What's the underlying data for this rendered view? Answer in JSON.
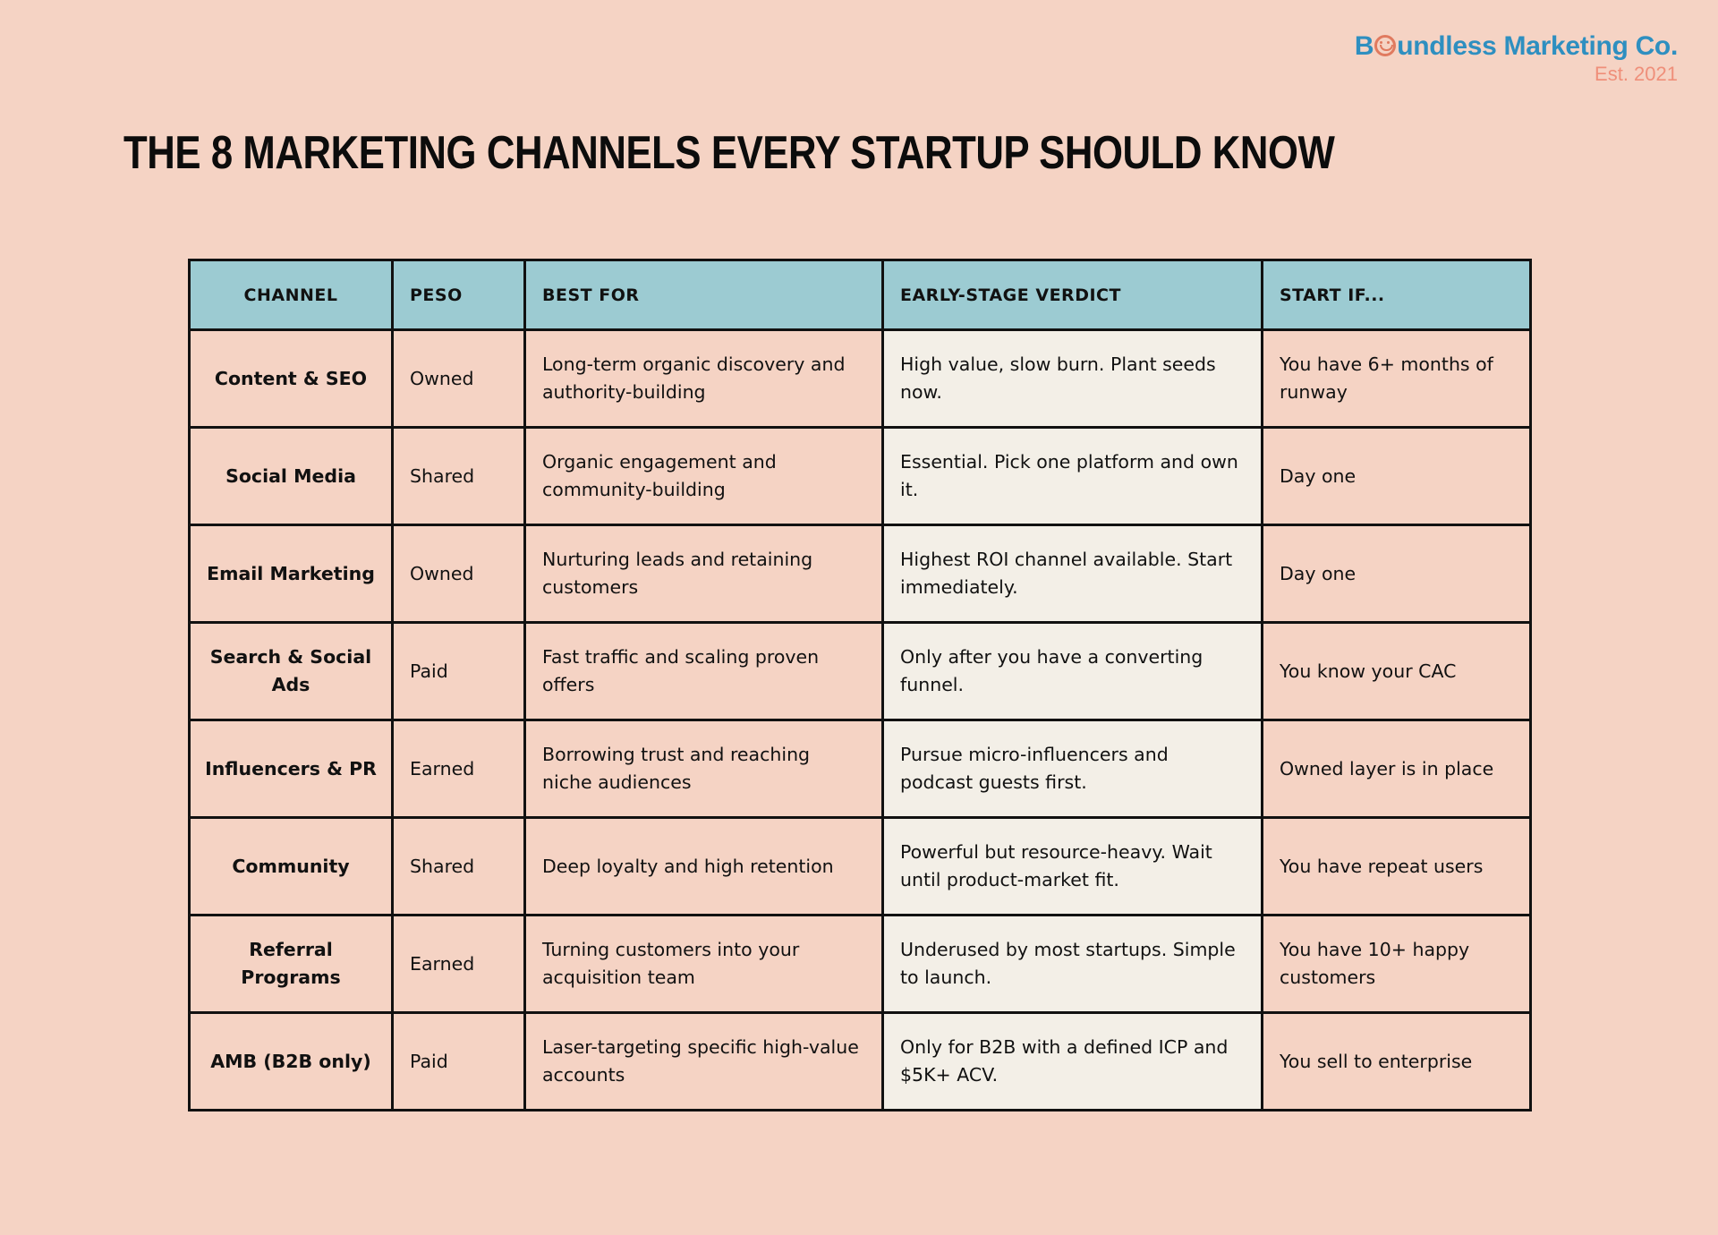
{
  "brand": {
    "name_before": "B",
    "name_after": "undless Marketing Co.",
    "established": "Est. 2021"
  },
  "title": "THE 8 MARKETING CHANNELS EVERY STARTUP SHOULD KNOW",
  "table": {
    "headers": [
      "CHANNEL",
      "PESO",
      "BEST FOR",
      "EARLY-STAGE VERDICT",
      "START IF..."
    ],
    "rows": [
      {
        "channel": "Content & SEO",
        "peso": "Owned",
        "best_for": "Long-term organic discovery and authority-building",
        "verdict": "High value, slow burn. Plant seeds now.",
        "start_if": "You have 6+ months of runway"
      },
      {
        "channel": "Social Media",
        "peso": "Shared",
        "best_for": "Organic engagement and community-building",
        "verdict": "Essential. Pick one platform and own it.",
        "start_if": "Day one"
      },
      {
        "channel": "Email Marketing",
        "peso": "Owned",
        "best_for": "Nurturing leads and retaining customers",
        "verdict": "Highest ROI channel available. Start immediately.",
        "start_if": "Day one"
      },
      {
        "channel": "Search & Social Ads",
        "peso": "Paid",
        "best_for": "Fast traffic and scaling proven offers",
        "verdict": "Only after you have a converting funnel.",
        "start_if": "You know your CAC"
      },
      {
        "channel": "Influencers & PR",
        "peso": "Earned",
        "best_for": "Borrowing trust and reaching niche audiences",
        "verdict": "Pursue micro-influencers and podcast guests first.",
        "start_if": "Owned layer is in place"
      },
      {
        "channel": "Community",
        "peso": "Shared",
        "best_for": "Deep loyalty and high retention",
        "verdict": "Powerful but resource-heavy. Wait until product-market fit.",
        "start_if": "You have repeat users"
      },
      {
        "channel": "Referral Programs",
        "peso": "Earned",
        "best_for": "Turning customers into your acquisition team",
        "verdict": "Underused by most startups. Simple to launch.",
        "start_if": "You have 10+ happy customers"
      },
      {
        "channel": "AMB (B2B only)",
        "peso": "Paid",
        "best_for": "Laser-targeting specific high-value accounts",
        "verdict": "Only for B2B with a defined ICP and $5K+ ACV.",
        "start_if": "You sell to enterprise"
      }
    ]
  },
  "colors": {
    "background": "#f5d3c4",
    "header_fill": "#9ccbd2",
    "verdict_fill": "#f3efe7",
    "brand_blue": "#2e8fc0",
    "brand_coral": "#ef8f7a"
  }
}
